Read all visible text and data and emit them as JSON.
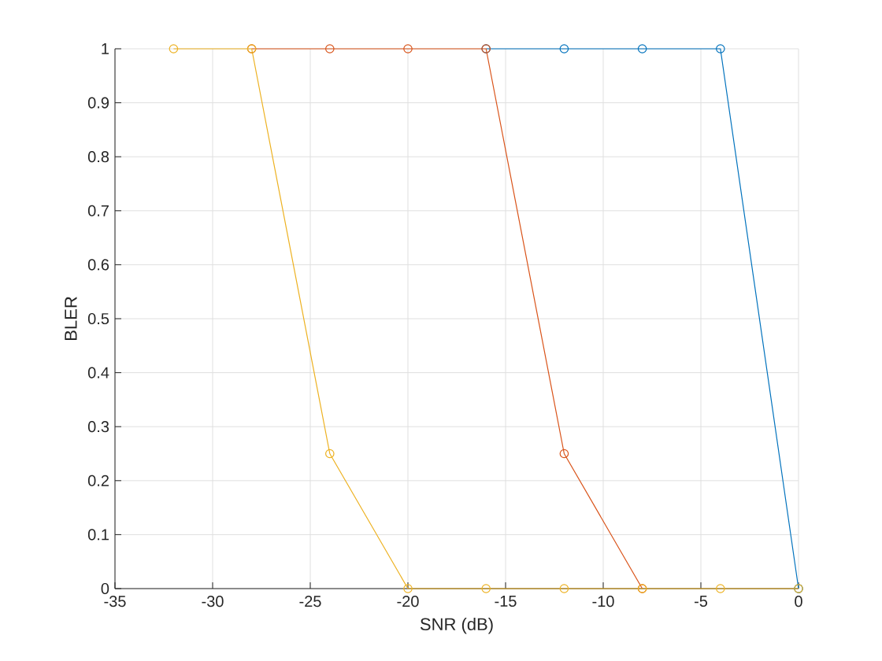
{
  "chart_data": {
    "type": "line",
    "xlabel": "SNR (dB)",
    "ylabel": "BLER",
    "xlim": [
      -35,
      0
    ],
    "ylim": [
      0,
      1
    ],
    "xticks": [
      -35,
      -30,
      -25,
      -20,
      -15,
      -10,
      -5,
      0
    ],
    "yticks": [
      0,
      0.1,
      0.2,
      0.3,
      0.4,
      0.5,
      0.6,
      0.7,
      0.8,
      0.9,
      1
    ],
    "grid": true,
    "marker": "circle",
    "line_style": "solid",
    "series": [
      {
        "color": "#0072bd",
        "x": [
          -16,
          -12,
          -8,
          -4,
          0
        ],
        "values": [
          1,
          1,
          1,
          1,
          0
        ]
      },
      {
        "color": "#d95319",
        "x": [
          -28,
          -24,
          -20,
          -16,
          -12,
          -8
        ],
        "values": [
          1,
          1,
          1,
          1,
          0.25,
          0
        ]
      },
      {
        "color": "#edb120",
        "x": [
          -32,
          -28,
          -24,
          -20,
          -16,
          -12,
          -8,
          -4,
          0
        ],
        "values": [
          1,
          1,
          0.25,
          0,
          0,
          0,
          0,
          0,
          0
        ]
      }
    ]
  }
}
